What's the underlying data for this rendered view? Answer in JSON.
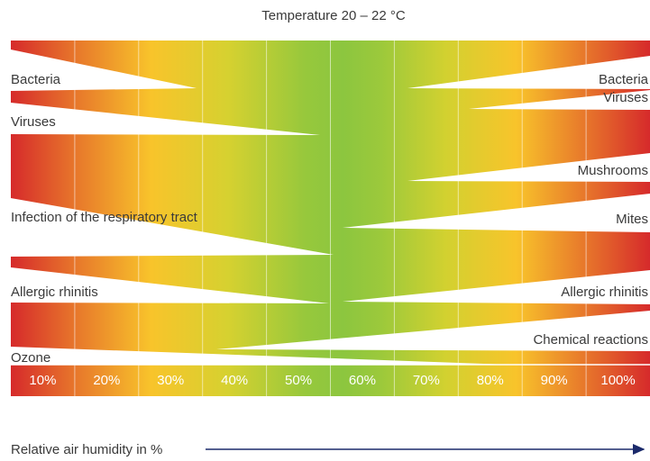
{
  "title": "Temperature 20 – 22 °C",
  "left_labels": [
    "Bacteria",
    "Viruses",
    "Infection of the respiratory tract",
    "Allergic rhinitis",
    "Ozone"
  ],
  "right_labels": [
    "Bacteria",
    "Viruses",
    "Mushrooms",
    "Mites",
    "Allergic rhinitis",
    "Chemical reactions"
  ],
  "humidity_labels": [
    "10%",
    "20%",
    "30%",
    "40%",
    "50%",
    "60%",
    "70%",
    "80%",
    "90%",
    "100%"
  ],
  "axis_label": "Relative air humidity in %"
}
